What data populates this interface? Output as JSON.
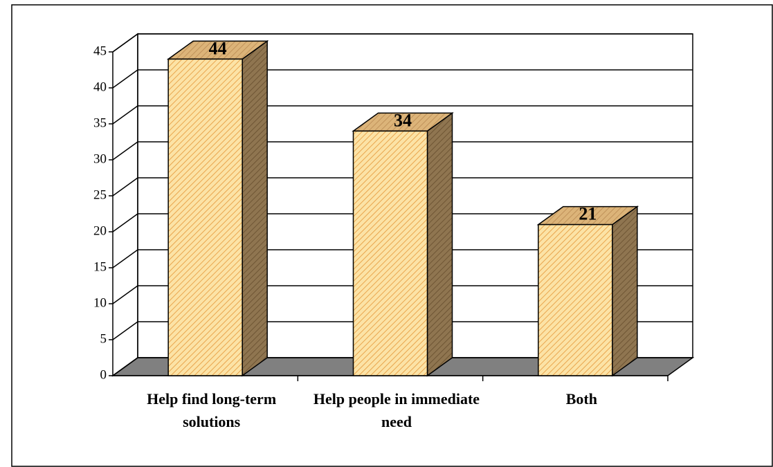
{
  "chart_data": {
    "type": "bar3d",
    "categories": [
      "Help find long-term solutions",
      "Help people in immediate need",
      "Both"
    ],
    "values": [
      44,
      34,
      21
    ],
    "color": "#fbd88f",
    "ylim": [
      0,
      45
    ],
    "yticks": [
      0,
      5,
      10,
      15,
      20,
      25,
      30,
      35,
      40,
      45
    ],
    "grid": true
  }
}
